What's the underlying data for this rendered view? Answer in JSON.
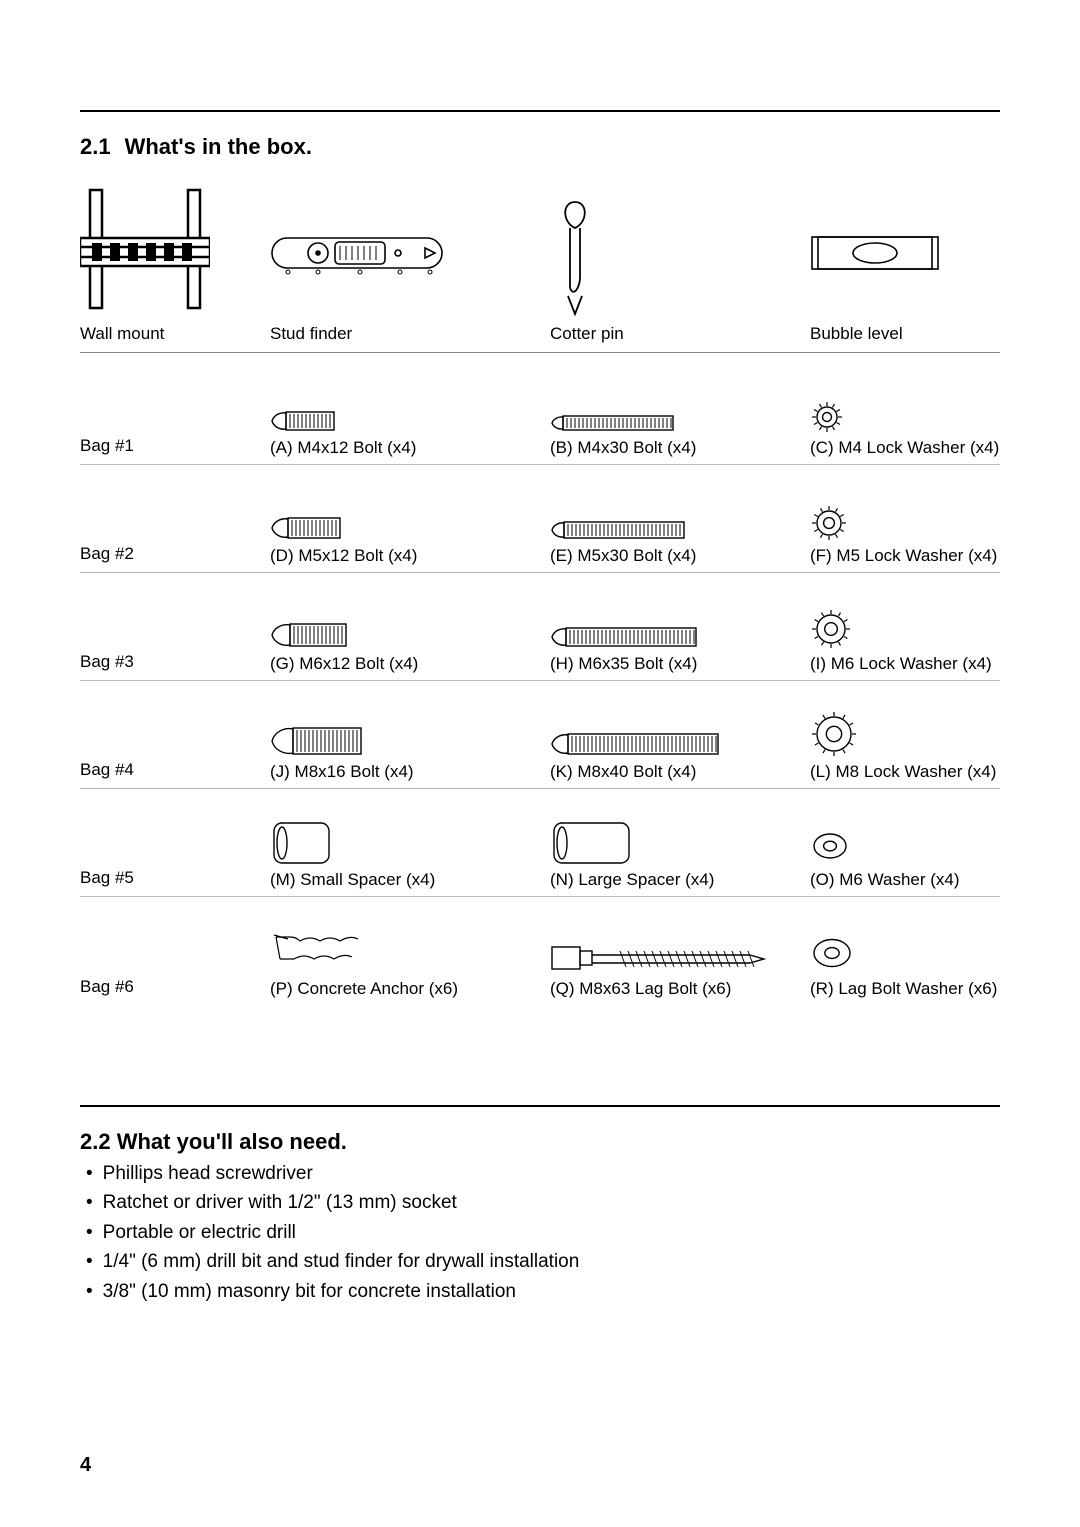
{
  "page_number": "4",
  "section1": {
    "number": "2.1",
    "title": "What's in the box."
  },
  "top_items": {
    "wall_mount": "Wall mount",
    "stud_finder": "Stud finder",
    "cotter_pin": "Cotter pin",
    "bubble_level": "Bubble level"
  },
  "bags": {
    "bag1": {
      "name": "Bag #1",
      "a": "(A) M4x12 Bolt (x4)",
      "b": "(B) M4x30 Bolt (x4)",
      "c": "(C) M4 Lock Washer (x4)"
    },
    "bag2": {
      "name": "Bag #2",
      "a": "(D) M5x12 Bolt (x4)",
      "b": "(E) M5x30 Bolt (x4)",
      "c": "(F) M5 Lock Washer (x4)"
    },
    "bag3": {
      "name": "Bag #3",
      "a": "(G) M6x12 Bolt (x4)",
      "b": "(H) M6x35 Bolt (x4)",
      "c": "(I) M6 Lock Washer (x4)"
    },
    "bag4": {
      "name": "Bag #4",
      "a": "(J) M8x16 Bolt (x4)",
      "b": "(K) M8x40 Bolt (x4)",
      "c": "(L) M8 Lock Washer (x4)"
    },
    "bag5": {
      "name": "Bag #5",
      "a": "(M) Small Spacer (x4)",
      "b": "(N) Large Spacer (x4)",
      "c": "(O) M6 Washer (x4)"
    },
    "bag6": {
      "name": "Bag #6",
      "a": "(P) Concrete Anchor (x6)",
      "b": "(Q) M8x63 Lag Bolt (x6)",
      "c": "(R) Lag Bolt Washer (x6)"
    }
  },
  "section2": {
    "number": "2.2",
    "title": "What you'll also need.",
    "items": [
      "Phillips head screwdriver",
      "Ratchet or driver with 1/2\" (13 mm) socket",
      "Portable or electric drill",
      "1/4\" (6 mm) drill bit and stud finder for drywall installation",
      "3/8\" (10 mm) masonry bit for concrete installation"
    ]
  },
  "style": {
    "stroke": "#000000",
    "stroke_width": 1.4,
    "bolt_sizes": {
      "bag1": [
        48,
        110
      ],
      "bag2": [
        52,
        120
      ],
      "bag3": [
        56,
        130
      ],
      "bag4": [
        68,
        150
      ]
    },
    "bolt_heights": {
      "bag1": [
        18,
        14
      ],
      "bag2": [
        20,
        16
      ],
      "bag3": [
        22,
        18
      ],
      "bag4": [
        26,
        20
      ]
    },
    "lock_washer_r": {
      "bag1": 10,
      "bag2": 12,
      "bag3": 14,
      "bag4": 17
    },
    "spacer": {
      "small": [
        55,
        40
      ],
      "large": [
        75,
        40
      ]
    },
    "flat_washer_r": {
      "bag5": 16,
      "bag6": 18
    }
  }
}
